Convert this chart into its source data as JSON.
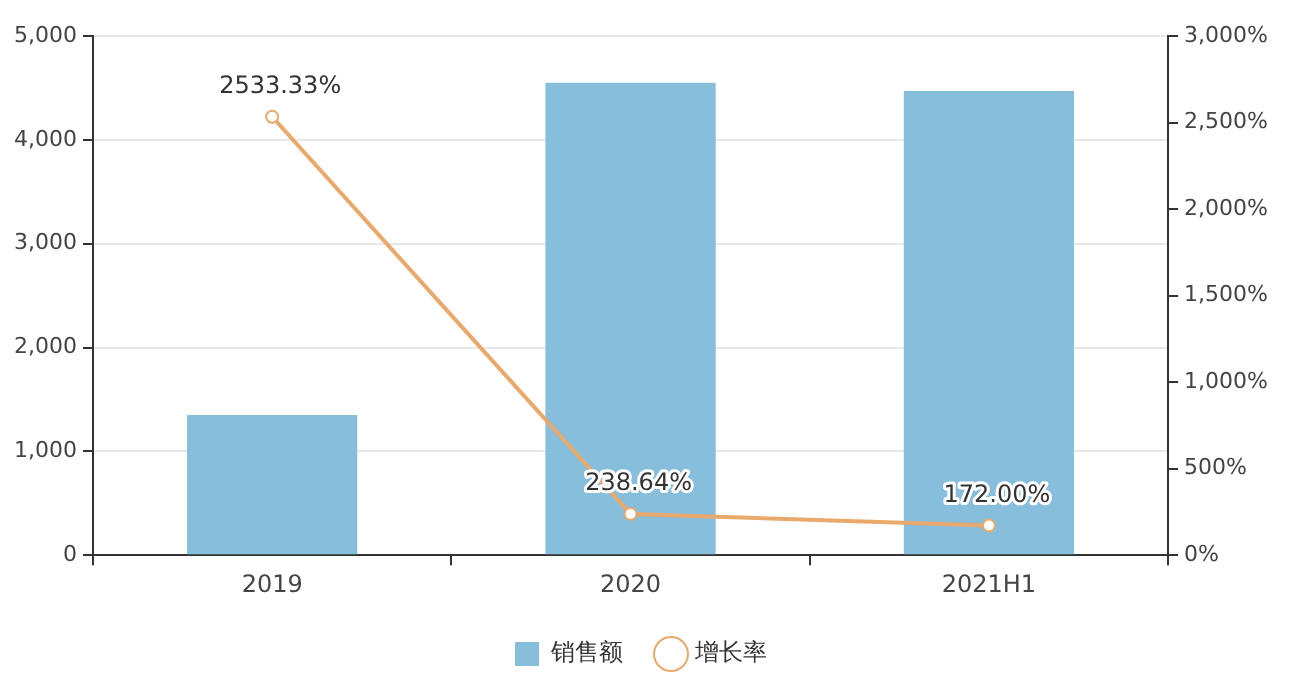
{
  "chart_data": {
    "type": "bar",
    "categories": [
      "2019",
      "2020",
      "2021H1"
    ],
    "series": [
      {
        "name": "销售额",
        "color": "#86bedc",
        "values": [
          1350,
          4550,
          4470
        ]
      },
      {
        "name": "增长率",
        "type": "line",
        "axis": "y2",
        "color": "#e8a96b",
        "values": [
          2533.33,
          238.64,
          172.0
        ],
        "value_labels": [
          "2533.33%",
          "238.64%",
          "172.00%"
        ],
        "marker": "circle"
      }
    ],
    "ylim": [
      0,
      5000
    ],
    "yticks": [
      {
        "value": 0,
        "label": "0"
      },
      {
        "value": 1000,
        "label": "1,000"
      },
      {
        "value": 2000,
        "label": "2,000"
      },
      {
        "value": 3000,
        "label": "3,000"
      },
      {
        "value": 4000,
        "label": "4,000"
      },
      {
        "value": 5000,
        "label": "5,000"
      }
    ],
    "y2lim": [
      0,
      3000
    ],
    "y2ticks": [
      {
        "value": 0,
        "label": "0%"
      },
      {
        "value": 500,
        "label": "500%"
      },
      {
        "value": 1000,
        "label": "1,000%"
      },
      {
        "value": 1500,
        "label": "1,500%"
      },
      {
        "value": 2000,
        "label": "2,000%"
      },
      {
        "value": 2500,
        "label": "2,500%"
      },
      {
        "value": 3000,
        "label": "3,000%"
      }
    ],
    "grid": "y",
    "legend": "bottom"
  }
}
